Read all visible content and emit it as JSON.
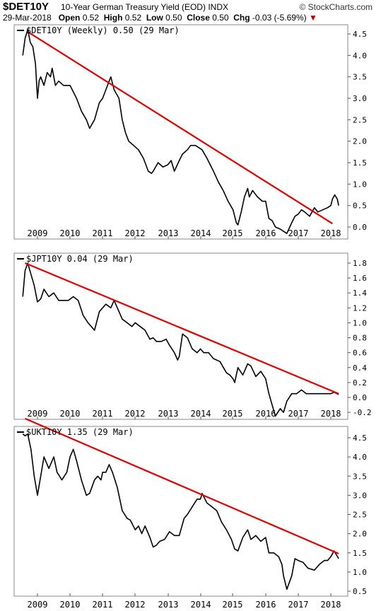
{
  "header": {
    "symbol": "$DET10Y",
    "title": "10-Year German Treasury Yield (EOD)",
    "exchange": "INDX",
    "brand": "© StockCharts.com",
    "date": "29-Mar-2018",
    "open_label": "Open",
    "open": "0.52",
    "high_label": "High",
    "high": "0.52",
    "low_label": "Low",
    "low": "0.50",
    "close_label": "Close",
    "close": "0.50",
    "chg_label": "Chg",
    "chg": "-0.03 (-5.69%)",
    "chg_arrow": "▼"
  },
  "colors": {
    "price": "#000000",
    "trendline": "#e00000",
    "frame": "#888888",
    "down": "#c00000"
  },
  "x_axis": {
    "labels": [
      "2009",
      "2010",
      "2011",
      "2012",
      "2013",
      "2014",
      "2015",
      "2016",
      "2017",
      "2018"
    ]
  },
  "chart_data": [
    {
      "type": "line",
      "legend": "$DET10Y (Weekly) 0.50 (29 Mar)",
      "ylim": [
        -0.2,
        4.8
      ],
      "yticks": [
        "4.5",
        "4.0",
        "3.5",
        "3.0",
        "2.5",
        "2.0",
        "1.5",
        "1.0",
        "0.5",
        "0.0"
      ],
      "series": [
        {
          "x": [
            2008.55,
            2008.62,
            2008.7,
            2008.78,
            2008.86,
            2008.94,
            2009.0,
            2009.05,
            2009.1,
            2009.2,
            2009.3,
            2009.4,
            2009.45,
            2009.55,
            2009.65,
            2009.8,
            2010.0,
            2010.2,
            2010.35,
            2010.5,
            2010.6,
            2010.75,
            2010.9,
            2011.0,
            2011.1,
            2011.2,
            2011.25,
            2011.35,
            2011.5,
            2011.6,
            2011.7,
            2011.8,
            2011.95,
            2012.1,
            2012.25,
            2012.4,
            2012.5,
            2012.55,
            2012.7,
            2012.85,
            2013.0,
            2013.1,
            2013.2,
            2013.35,
            2013.45,
            2013.6,
            2013.7,
            2013.85,
            2013.95,
            2014.05,
            2014.2,
            2014.4,
            2014.55,
            2014.7,
            2014.85,
            2015.0,
            2015.1,
            2015.15,
            2015.25,
            2015.35,
            2015.45,
            2015.5,
            2015.6,
            2015.75,
            2015.9,
            2016.0,
            2016.1,
            2016.2,
            2016.3,
            2016.45,
            2016.55,
            2016.65,
            2016.8,
            2016.9,
            2017.0,
            2017.1,
            2017.2,
            2017.35,
            2017.5,
            2017.6,
            2017.75,
            2017.9,
            2018.0,
            2018.05,
            2018.12,
            2018.2,
            2018.24
          ],
          "values": [
            4.0,
            4.4,
            4.6,
            4.3,
            4.2,
            3.8,
            3.0,
            3.4,
            3.5,
            3.3,
            3.6,
            3.5,
            3.7,
            3.3,
            3.4,
            3.3,
            3.3,
            3.0,
            2.7,
            2.5,
            2.3,
            2.5,
            2.9,
            3.0,
            3.2,
            3.4,
            3.5,
            3.2,
            3.0,
            2.5,
            2.2,
            2.0,
            1.9,
            1.8,
            1.6,
            1.3,
            1.25,
            1.3,
            1.5,
            1.4,
            1.45,
            1.55,
            1.3,
            1.55,
            1.7,
            1.8,
            1.9,
            1.9,
            1.85,
            1.8,
            1.6,
            1.3,
            1.05,
            0.85,
            0.6,
            0.4,
            0.1,
            0.05,
            0.35,
            0.7,
            0.9,
            0.7,
            0.85,
            0.7,
            0.6,
            0.6,
            0.2,
            0.15,
            0.0,
            -0.05,
            -0.1,
            -0.15,
            0.1,
            0.25,
            0.3,
            0.4,
            0.35,
            0.25,
            0.45,
            0.35,
            0.4,
            0.45,
            0.5,
            0.65,
            0.75,
            0.65,
            0.5
          ]
        }
      ],
      "trendline": {
        "x": [
          2008.7,
          2018.05
        ],
        "values": [
          4.55,
          0.08
        ]
      }
    },
    {
      "type": "line",
      "legend": "$JPT10Y 0.04 (29 Mar)",
      "ylim": [
        -0.35,
        1.95
      ],
      "yticks": [
        "1.8",
        "1.6",
        "1.4",
        "1.2",
        "1.0",
        "0.8",
        "0.6",
        "0.4",
        "0.2",
        "0.0",
        "-0.2"
      ],
      "series": [
        {
          "x": [
            2008.55,
            2008.62,
            2008.7,
            2008.8,
            2008.9,
            2009.0,
            2009.1,
            2009.2,
            2009.35,
            2009.5,
            2009.65,
            2009.8,
            2009.95,
            2010.1,
            2010.25,
            2010.4,
            2010.55,
            2010.65,
            2010.75,
            2010.9,
            2011.0,
            2011.1,
            2011.25,
            2011.35,
            2011.5,
            2011.6,
            2011.75,
            2011.9,
            2012.0,
            2012.15,
            2012.3,
            2012.45,
            2012.55,
            2012.65,
            2012.8,
            2012.95,
            2013.05,
            2013.2,
            2013.3,
            2013.35,
            2013.45,
            2013.6,
            2013.75,
            2013.9,
            2014.0,
            2014.1,
            2014.25,
            2014.4,
            2014.6,
            2014.8,
            2014.9,
            2015.0,
            2015.05,
            2015.15,
            2015.3,
            2015.45,
            2015.55,
            2015.7,
            2015.85,
            2016.0,
            2016.1,
            2016.2,
            2016.3,
            2016.45,
            2016.55,
            2016.65,
            2016.8,
            2016.95,
            2017.1,
            2017.25,
            2017.4,
            2017.55,
            2017.7,
            2017.85,
            2018.0,
            2018.1,
            2018.24
          ],
          "values": [
            1.35,
            1.7,
            1.8,
            1.65,
            1.5,
            1.28,
            1.32,
            1.45,
            1.35,
            1.4,
            1.3,
            1.3,
            1.3,
            1.35,
            1.3,
            1.1,
            1.0,
            0.95,
            0.9,
            1.15,
            1.2,
            1.25,
            1.2,
            1.3,
            1.15,
            1.05,
            1.0,
            0.95,
            1.0,
            0.95,
            0.9,
            0.78,
            0.8,
            0.75,
            0.75,
            0.78,
            0.7,
            0.6,
            0.5,
            0.55,
            0.85,
            0.8,
            0.65,
            0.6,
            0.65,
            0.6,
            0.6,
            0.52,
            0.48,
            0.33,
            0.3,
            0.25,
            0.2,
            0.4,
            0.3,
            0.45,
            0.42,
            0.28,
            0.35,
            0.25,
            0.05,
            -0.1,
            -0.25,
            -0.15,
            -0.2,
            -0.05,
            0.05,
            0.05,
            0.1,
            0.05,
            0.05,
            0.05,
            0.05,
            0.05,
            0.05,
            0.07,
            0.04
          ]
        }
      ],
      "trendline": {
        "x": [
          2008.62,
          2018.24
        ],
        "values": [
          1.8,
          0.05
        ]
      }
    },
    {
      "type": "line",
      "legend": "$UKT10Y 1.35 (29 Mar)",
      "ylim": [
        0.35,
        4.75
      ],
      "yticks": [
        "4.5",
        "4.0",
        "3.5",
        "3.0",
        "2.5",
        "2.0",
        "1.5",
        "1.0",
        "0.5"
      ],
      "series": [
        {
          "x": [
            2008.55,
            2008.62,
            2008.7,
            2008.8,
            2008.9,
            2009.0,
            2009.1,
            2009.2,
            2009.35,
            2009.5,
            2009.6,
            2009.75,
            2009.9,
            2010.0,
            2010.1,
            2010.2,
            2010.35,
            2010.5,
            2010.6,
            2010.75,
            2010.85,
            2010.95,
            2011.0,
            2011.1,
            2011.2,
            2011.3,
            2011.45,
            2011.6,
            2011.75,
            2011.85,
            2012.0,
            2012.1,
            2012.2,
            2012.3,
            2012.45,
            2012.55,
            2012.65,
            2012.75,
            2012.9,
            2013.05,
            2013.2,
            2013.35,
            2013.5,
            2013.6,
            2013.75,
            2013.9,
            2014.0,
            2014.05,
            2014.2,
            2014.35,
            2014.5,
            2014.65,
            2014.8,
            2014.95,
            2015.05,
            2015.15,
            2015.3,
            2015.45,
            2015.55,
            2015.7,
            2015.85,
            2016.0,
            2016.1,
            2016.25,
            2016.4,
            2016.5,
            2016.55,
            2016.65,
            2016.8,
            2016.9,
            2017.0,
            2017.15,
            2017.3,
            2017.5,
            2017.65,
            2017.8,
            2017.9,
            2018.0,
            2018.1,
            2018.24
          ],
          "values": [
            4.6,
            4.55,
            4.6,
            4.2,
            3.5,
            3.0,
            3.5,
            4.0,
            3.7,
            4.0,
            3.6,
            3.4,
            3.6,
            4.0,
            4.2,
            3.9,
            3.4,
            3.0,
            3.05,
            3.4,
            3.5,
            3.4,
            3.6,
            3.6,
            3.8,
            3.6,
            3.2,
            2.6,
            2.4,
            2.35,
            2.1,
            2.2,
            2.0,
            2.2,
            1.9,
            1.65,
            1.7,
            1.8,
            1.85,
            2.05,
            1.95,
            1.95,
            2.4,
            2.5,
            2.7,
            2.9,
            2.9,
            3.05,
            2.8,
            2.7,
            2.6,
            2.3,
            2.1,
            1.85,
            1.6,
            1.55,
            1.9,
            2.1,
            1.85,
            1.95,
            1.8,
            1.9,
            1.5,
            1.5,
            1.4,
            1.2,
            0.9,
            0.55,
            0.9,
            1.35,
            1.3,
            1.25,
            1.1,
            1.05,
            1.2,
            1.3,
            1.3,
            1.4,
            1.55,
            1.35
          ]
        }
      ],
      "trendline": {
        "x": [
          2008.62,
          2018.24
        ],
        "values": [
          5.0,
          1.48
        ]
      }
    }
  ]
}
